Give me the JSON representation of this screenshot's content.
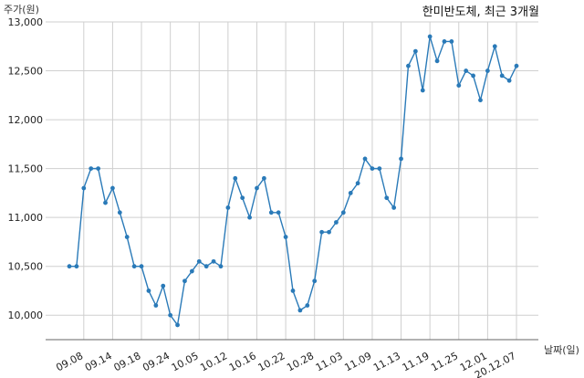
{
  "chart_data": {
    "type": "line",
    "title": "한미반도체, 최근 3개월",
    "xlabel": "날짜(일)",
    "ylabel": "주가(원)",
    "ylim": [
      9750,
      13000
    ],
    "yticks": [
      10000,
      10500,
      11000,
      11500,
      12000,
      12500,
      13000
    ],
    "ytick_labels": [
      "10,000",
      "10,500",
      "11,000",
      "11,500",
      "12,000",
      "12,500",
      "13,000"
    ],
    "xtick_labels": [
      "09.08",
      "09.14",
      "09.18",
      "09.24",
      "10.05",
      "10.12",
      "10.16",
      "10.22",
      "10.28",
      "11.03",
      "11.09",
      "11.13",
      "11.19",
      "11.25",
      "12.01",
      "20.12.07"
    ],
    "xtick_indices": [
      2,
      6,
      10,
      14,
      18,
      22,
      26,
      30,
      34,
      38,
      42,
      46,
      50,
      54,
      58,
      62
    ],
    "grid": true,
    "color": "#2a7ab8",
    "series": [
      {
        "values": [
          10500,
          10500,
          11300,
          11500,
          11500,
          11150,
          11300,
          11050,
          10800,
          10500,
          10500,
          10250,
          10100,
          10300,
          10000,
          9900,
          10350,
          10450,
          10550,
          10500,
          10550,
          10500,
          11100,
          11400,
          11200,
          11000,
          11300,
          11400,
          11050,
          11050,
          10800,
          10250,
          10050,
          10100,
          10350,
          10850,
          10850,
          10950,
          11050,
          11250,
          11350,
          11600,
          11500,
          11500,
          11200,
          11100,
          11600,
          12550,
          12700,
          12300,
          12850,
          12600,
          12800,
          12800,
          12350,
          12500,
          12450,
          12200,
          12500,
          12750,
          12450,
          12400,
          12550
        ]
      }
    ]
  }
}
